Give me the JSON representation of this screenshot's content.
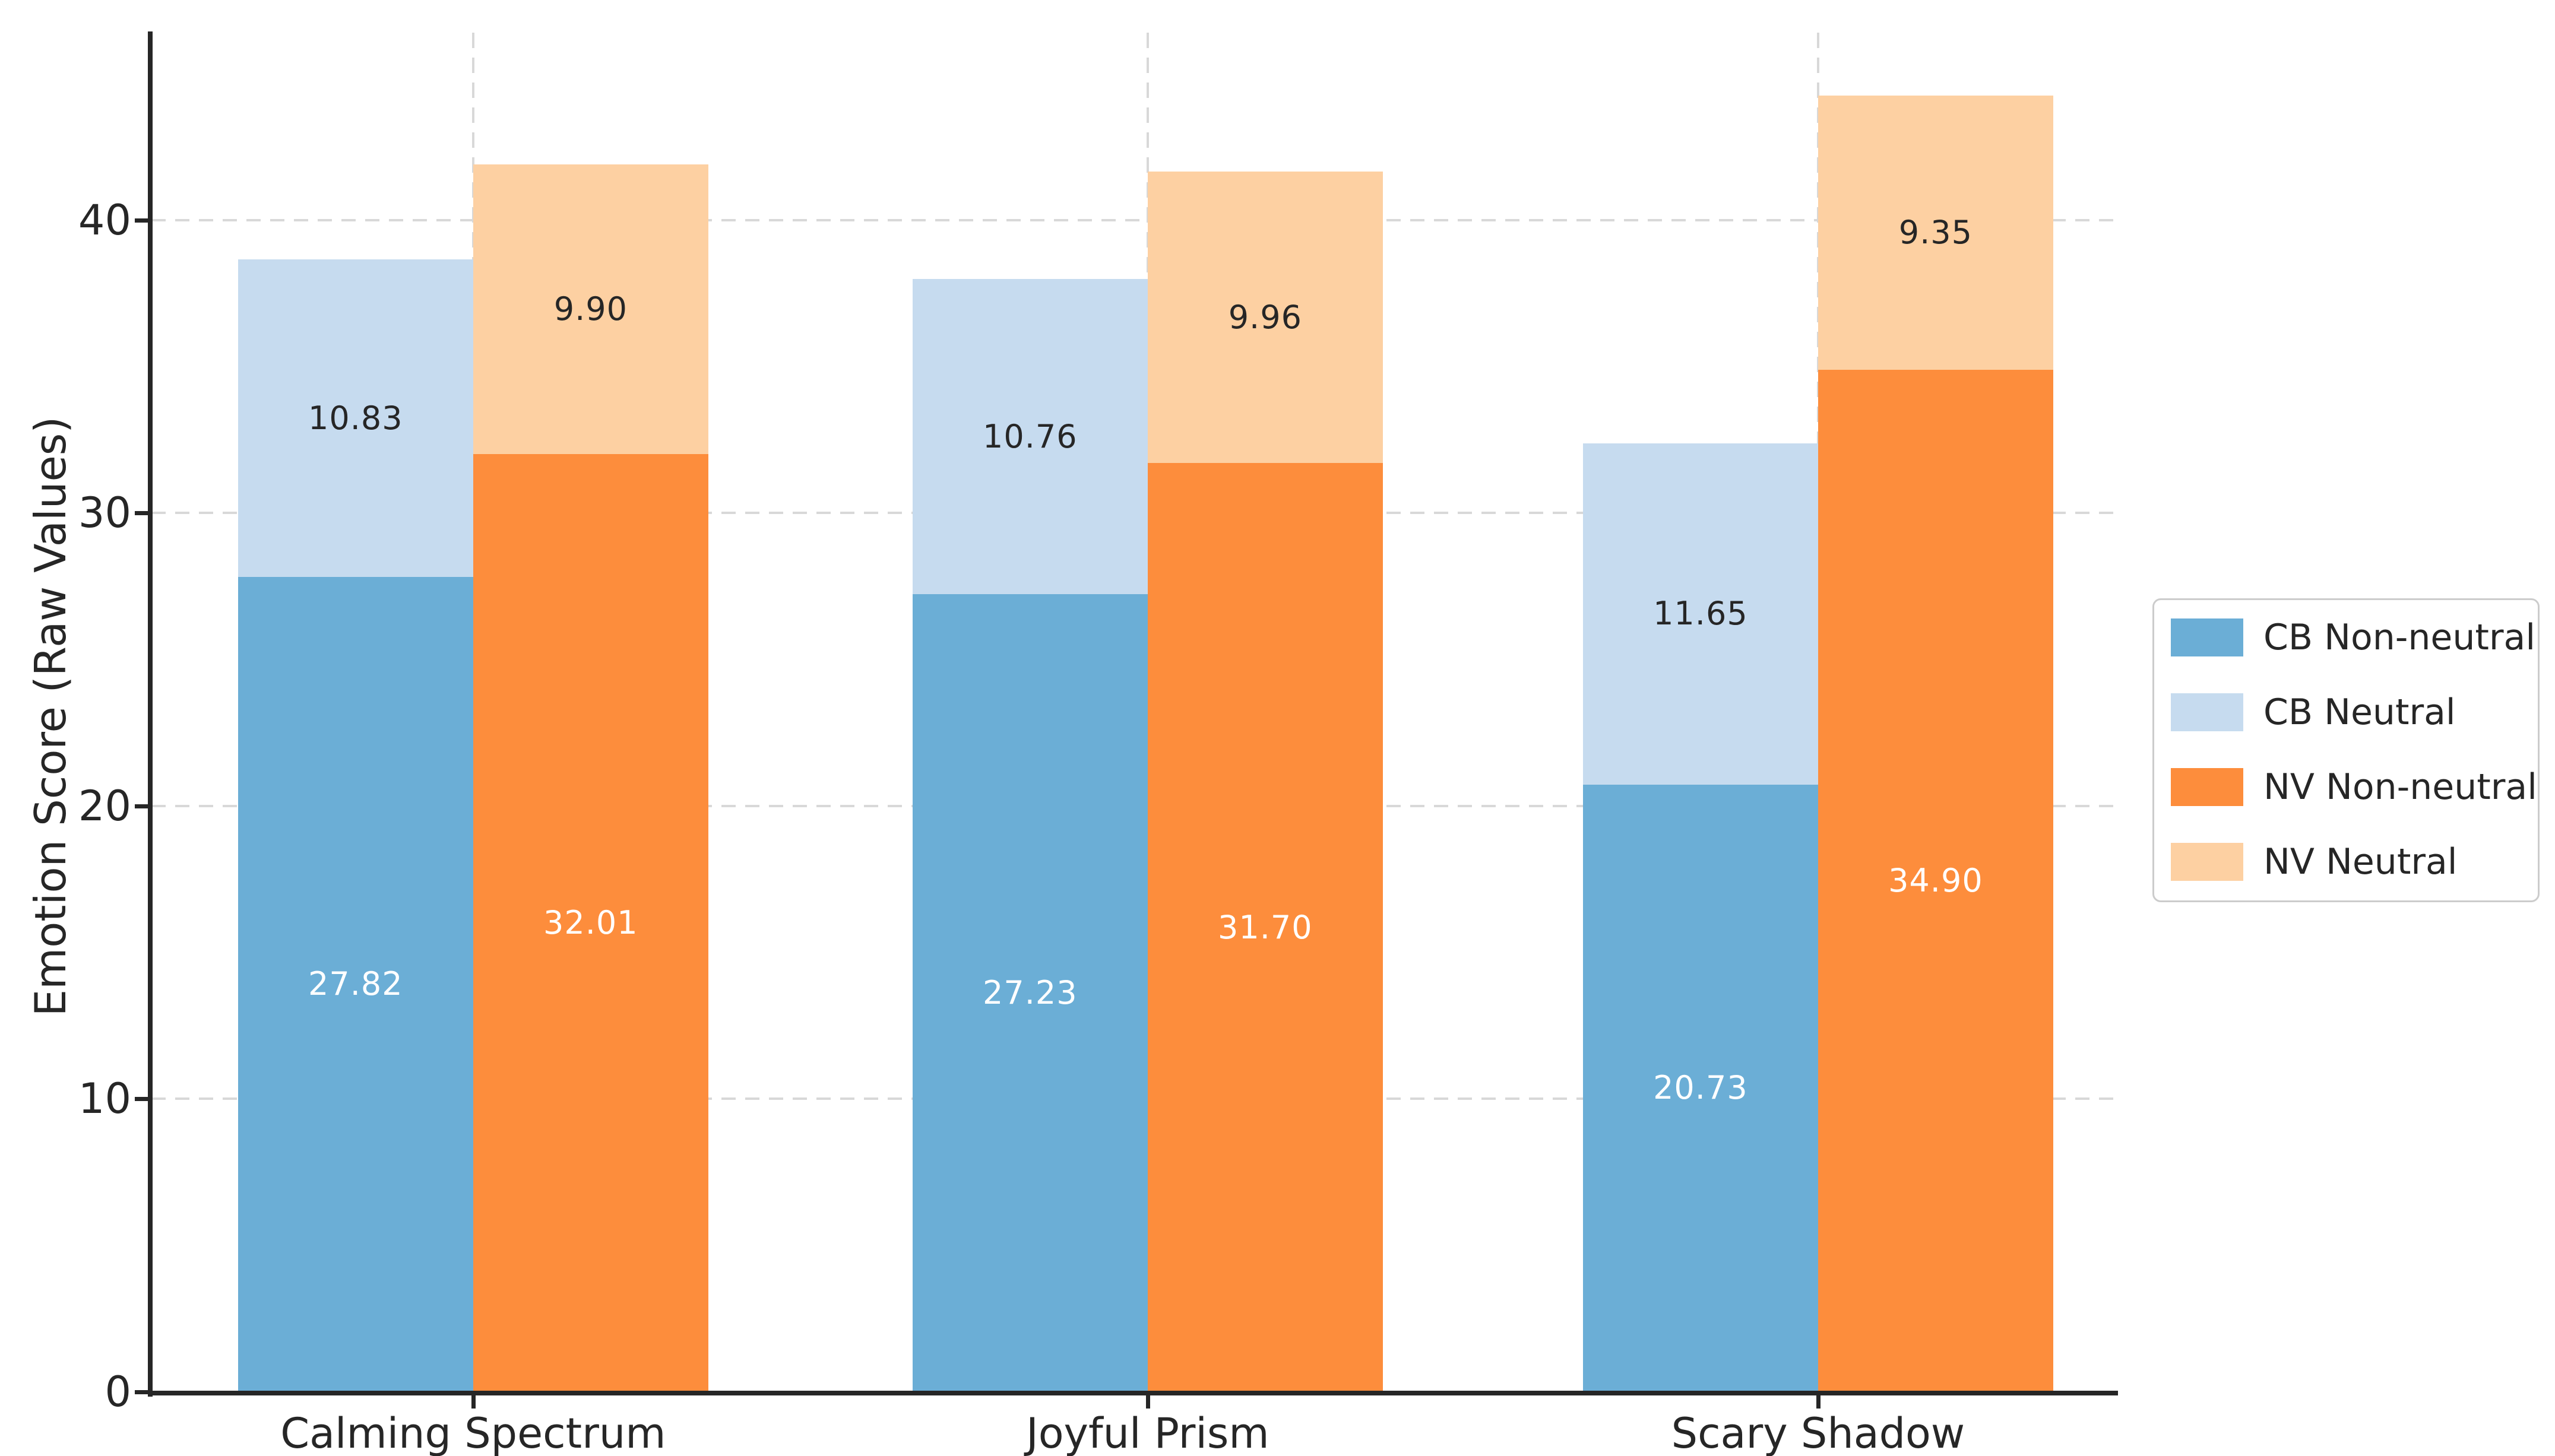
{
  "figure": {
    "background": "#ffffff",
    "axis_color": "#262626",
    "grid_color": "#d8d8d8"
  },
  "chart_data": {
    "type": "bar",
    "stacked": true,
    "title": "",
    "xlabel": "",
    "ylabel": "Emotion Score (Raw Values)",
    "categories": [
      "Calming Spectrum",
      "Joyful Prism",
      "Scary Shadow"
    ],
    "series": [
      {
        "name": "CB Non-neutral",
        "stack": "CB",
        "color": "#6baed6",
        "label_color": "#ffffff",
        "values": [
          27.82,
          27.23,
          20.73
        ]
      },
      {
        "name": "CB Neutral",
        "stack": "CB",
        "color": "#c6dbef",
        "label_color": "#262626",
        "values": [
          10.83,
          10.76,
          11.65
        ]
      },
      {
        "name": "NV Non-neutral",
        "stack": "NV",
        "color": "#fd8d3c",
        "label_color": "#ffffff",
        "values": [
          32.01,
          31.7,
          34.9
        ]
      },
      {
        "name": "NV Neutral",
        "stack": "NV",
        "color": "#fdd0a2",
        "label_color": "#262626",
        "values": [
          9.9,
          9.96,
          9.35
        ]
      }
    ],
    "value_labels_decimals": 2,
    "yticks": [
      0,
      10,
      20,
      30,
      40
    ],
    "ylim": [
      0,
      46.4
    ],
    "grid": {
      "horizontal": true,
      "vertical": true,
      "style": "dashed"
    },
    "legend": {
      "position": "right",
      "items": [
        "CB Non-neutral",
        "CB Neutral",
        "NV Non-neutral",
        "NV Neutral"
      ]
    }
  }
}
